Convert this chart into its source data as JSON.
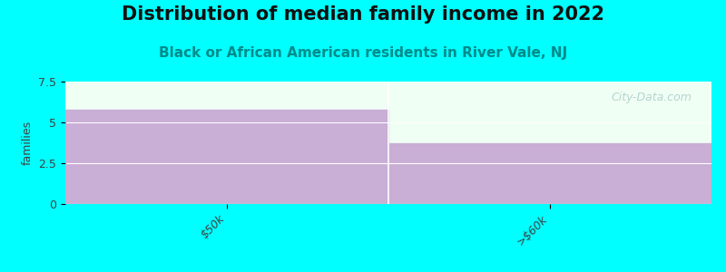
{
  "title": "Distribution of median family income in 2022",
  "subtitle": "Black or African American residents in River Vale, NJ",
  "categories": [
    "$50k",
    ">$60k"
  ],
  "values": [
    5.8,
    3.7
  ],
  "bar_color": "#c9aed6",
  "background_color": "#00ffff",
  "plot_bg_color": "#f0fff4",
  "ylabel": "families",
  "ylim": [
    0,
    7.5
  ],
  "yticks": [
    0,
    2.5,
    5,
    7.5
  ],
  "title_fontsize": 15,
  "subtitle_fontsize": 11,
  "watermark": "City-Data.com"
}
